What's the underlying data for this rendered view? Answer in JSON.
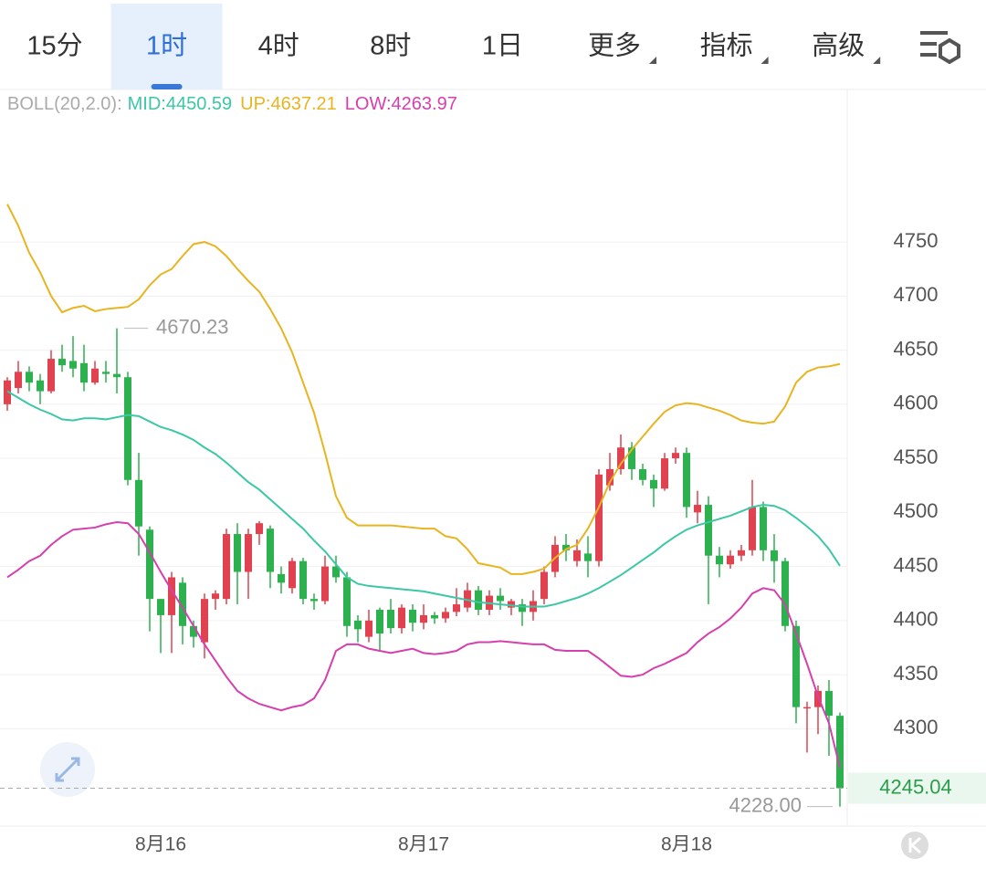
{
  "toolbar": {
    "tabs": [
      {
        "label": "15分",
        "dropdown": false
      },
      {
        "label": "1时",
        "dropdown": false
      },
      {
        "label": "4时",
        "dropdown": false
      },
      {
        "label": "8时",
        "dropdown": false
      },
      {
        "label": "1日",
        "dropdown": false
      },
      {
        "label": "更多",
        "dropdown": true
      },
      {
        "label": "指标",
        "dropdown": true
      },
      {
        "label": "高级",
        "dropdown": true
      }
    ],
    "active": 1
  },
  "chart_data": {
    "type": "candlestick",
    "up_color": "#e0434f",
    "down_color": "#2db14f",
    "categories": [
      null,
      null,
      null,
      null,
      null,
      null,
      null,
      null,
      null,
      null,
      null,
      null,
      null,
      null,
      "8月16",
      null,
      null,
      null,
      null,
      null,
      null,
      null,
      null,
      null,
      null,
      null,
      null,
      null,
      null,
      null,
      null,
      null,
      null,
      null,
      null,
      null,
      null,
      null,
      "8月17",
      null,
      null,
      null,
      null,
      null,
      null,
      null,
      null,
      null,
      null,
      null,
      null,
      null,
      null,
      null,
      null,
      null,
      null,
      null,
      null,
      null,
      null,
      null,
      "8月18",
      null,
      null,
      null,
      null,
      null,
      null,
      null,
      null,
      null,
      null,
      null,
      null,
      null,
      null
    ],
    "open": [
      4600,
      4615,
      4630,
      4622,
      4612,
      4642,
      4640,
      4638,
      4620,
      4630,
      4628,
      4625,
      4530,
      4484,
      4420,
      4405,
      4435,
      4395,
      4380,
      4420,
      4420,
      4480,
      4445,
      4480,
      4485,
      4443,
      4430,
      4455,
      4420,
      4418,
      4450,
      4440,
      4400,
      4385,
      4410,
      4410,
      4393,
      4410,
      4398,
      4405,
      4402,
      4408,
      4412,
      4428,
      4410,
      4423,
      4412,
      4415,
      4408,
      4420,
      4445,
      4470,
      4455,
      4462,
      4455,
      4525,
      4540,
      4560,
      4540,
      4530,
      4522,
      4550,
      4555,
      4500,
      4507,
      4460,
      4452,
      4460,
      4465,
      4505,
      4465,
      4455,
      4395,
      4320,
      4320,
      4335,
      4312
    ],
    "high": [
      4625,
      4640,
      4635,
      4628,
      4650,
      4655,
      4663,
      4655,
      4640,
      4640,
      4670.23,
      4630,
      4555,
      4487,
      4420,
      4445,
      4440,
      4400,
      4425,
      4428,
      4485,
      4490,
      4485,
      4492,
      4488,
      4450,
      4458,
      4458,
      4425,
      4460,
      4460,
      4445,
      4405,
      4410,
      4412,
      4420,
      4415,
      4415,
      4415,
      4408,
      4412,
      4430,
      4435,
      4432,
      4428,
      4430,
      4420,
      4420,
      4428,
      4450,
      4478,
      4480,
      4475,
      4478,
      4540,
      4555,
      4572,
      4565,
      4545,
      4535,
      4555,
      4560,
      4560,
      4520,
      4515,
      4468,
      4465,
      4470,
      4530,
      4510,
      4480,
      4458,
      4400,
      4325,
      4340,
      4345,
      4315
    ],
    "low": [
      4594,
      4610,
      4612,
      4600,
      4610,
      4630,
      4625,
      4612,
      4618,
      4620,
      4610,
      4525,
      4460,
      4390,
      4370,
      4370,
      4378,
      4375,
      4365,
      4410,
      4415,
      4415,
      4420,
      4470,
      4430,
      4425,
      4425,
      4415,
      4410,
      4415,
      4435,
      4385,
      4380,
      4380,
      4372,
      4388,
      4388,
      4390,
      4392,
      4397,
      4398,
      4404,
      4408,
      4405,
      4405,
      4410,
      4405,
      4395,
      4400,
      4415,
      4440,
      4455,
      4450,
      4440,
      4450,
      4520,
      4535,
      4530,
      4525,
      4505,
      4520,
      4545,
      4495,
      4490,
      4415,
      4440,
      4448,
      4455,
      4460,
      4455,
      4435,
      4390,
      4305,
      4278,
      4295,
      4275,
      4228
    ],
    "close": [
      4622,
      4630,
      4620,
      4612,
      4642,
      4636,
      4633,
      4620,
      4633,
      4628,
      4625,
      4530,
      4487,
      4420,
      4405,
      4440,
      4395,
      4385,
      4420,
      4425,
      4480,
      4445,
      4480,
      4490,
      4445,
      4435,
      4455,
      4420,
      4418,
      4450,
      4440,
      4395,
      4392,
      4400,
      4388,
      4393,
      4412,
      4398,
      4405,
      4402,
      4408,
      4415,
      4428,
      4410,
      4423,
      4418,
      4418,
      4408,
      4418,
      4445,
      4470,
      4465,
      4465,
      4455,
      4535,
      4540,
      4560,
      4540,
      4530,
      4522,
      4550,
      4555,
      4505,
      4507,
      4460,
      4452,
      4460,
      4465,
      4505,
      4465,
      4455,
      4395,
      4320,
      4320,
      4335,
      4312,
      4245.04
    ],
    "low_label": "4228.00",
    "indicator": "BOLL(20,2.0):",
    "bands": [
      {
        "name": "MID:4450.59",
        "color": "#3cc7a5",
        "values": [
          4612,
          4606,
          4600,
          4595,
          4591,
          4586,
          4585,
          4587,
          4587,
          4586,
          4588,
          4590,
          4589,
          4584,
          4579,
          4576,
          4572,
          4567,
          4560,
          4554,
          4546,
          4537,
          4528,
          4521,
          4512,
          4503,
          4494,
          4485,
          4474,
          4464,
          4452,
          4440,
          4434,
          4432,
          4431,
          4430,
          4429,
          4428,
          4427,
          4425,
          4423,
          4421,
          4419,
          4417,
          4416,
          4415,
          4414,
          4413,
          4413,
          4413,
          4415,
          4418,
          4421,
          4425,
          4430,
          4436,
          4442,
          4449,
          4456,
          4463,
          4471,
          4478,
          4484,
          4488,
          4491,
          4494,
          4497,
          4501,
          4505,
          4507,
          4506,
          4502,
          4495,
          4487,
          4478,
          4466,
          4450.59
        ]
      },
      {
        "name": "UP:4637.21",
        "color": "#e8b420",
        "values": [
          4785,
          4765,
          4740,
          4722,
          4700,
          4685,
          4689,
          4691,
          4686,
          4688,
          4689,
          4690,
          4697,
          4710,
          4720,
          4725,
          4737,
          4748,
          4750,
          4746,
          4737,
          4725,
          4714,
          4704,
          4688,
          4670,
          4648,
          4620,
          4592,
          4555,
          4515,
          4495,
          4488,
          4488,
          4488,
          4488,
          4487,
          4486,
          4485,
          4485,
          4478,
          4476,
          4466,
          4453,
          4451,
          4449,
          4443,
          4443,
          4445,
          4448,
          4458,
          4466,
          4470,
          4485,
          4505,
          4528,
          4545,
          4558,
          4570,
          4582,
          4593,
          4599,
          4601,
          4600,
          4597,
          4594,
          4590,
          4585,
          4583,
          4582,
          4584,
          4598,
          4620,
          4630,
          4634,
          4635,
          4637.21
        ]
      },
      {
        "name": "LOW:4263.97",
        "color": "#d63fae",
        "values": [
          4440,
          4447,
          4455,
          4460,
          4470,
          4478,
          4484,
          4485,
          4486,
          4489,
          4491,
          4490,
          4480,
          4463,
          4445,
          4428,
          4412,
          4395,
          4378,
          4363,
          4348,
          4335,
          4328,
          4323,
          4320,
          4317,
          4320,
          4322,
          4328,
          4345,
          4372,
          4378,
          4378,
          4374,
          4372,
          4370,
          4372,
          4374,
          4370,
          4369,
          4370,
          4372,
          4378,
          4380,
          4380,
          4381,
          4380,
          4379,
          4378,
          4378,
          4373,
          4372,
          4372,
          4372,
          4365,
          4357,
          4349,
          4348,
          4350,
          4356,
          4360,
          4365,
          4370,
          4380,
          4388,
          4394,
          4402,
          4412,
          4425,
          4430,
          4428,
          4415,
          4388,
          4360,
          4330,
          4305,
          4263.97
        ]
      }
    ],
    "ylim": [
      4210,
      4891
    ],
    "yticks": [
      4300,
      4350,
      4400,
      4450,
      4500,
      4550,
      4600,
      4650,
      4700,
      4750
    ],
    "grid": true
  }
}
